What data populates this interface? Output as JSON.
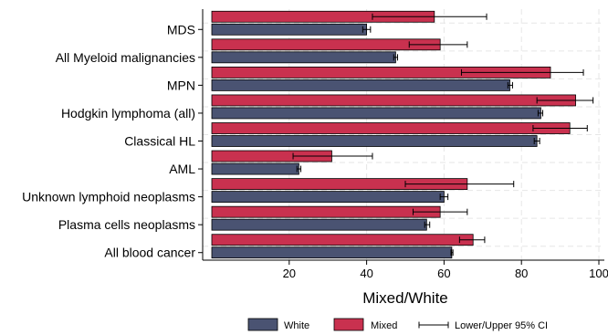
{
  "chart_data": {
    "type": "bar",
    "orientation": "horizontal",
    "title": "",
    "xlabel": "Mixed/White",
    "ylabel": "",
    "xlim": [
      0,
      100
    ],
    "xticks": [
      20,
      40,
      60,
      80,
      100
    ],
    "grid": true,
    "legend_position": "bottom",
    "categories": [
      "MDS",
      "All Myeloid malignancies",
      "MPN",
      "Hodgkin lymphoma (all)",
      "Classical HL",
      "AML",
      "Unknown lymphoid neoplasms",
      "Plasma cells neoplasms",
      "All blood cancer"
    ],
    "series": [
      {
        "name": "White",
        "color": "#4a5372",
        "values": [
          40.0,
          47.5,
          77.0,
          85.0,
          84.0,
          22.5,
          60.0,
          55.5,
          62.0
        ],
        "ci_lower": [
          39.0,
          47.0,
          76.5,
          84.3,
          83.3,
          22.0,
          59.0,
          55.0,
          61.8
        ],
        "ci_upper": [
          41.0,
          48.0,
          77.7,
          85.5,
          84.7,
          23.0,
          61.0,
          56.3,
          62.3
        ]
      },
      {
        "name": "Mixed",
        "color": "#c9314f",
        "values": [
          57.5,
          59.0,
          87.5,
          94.0,
          92.5,
          31.0,
          66.0,
          59.0,
          67.5
        ],
        "ci_lower": [
          41.5,
          51.0,
          64.5,
          84.0,
          83.0,
          21.0,
          50.0,
          52.0,
          64.0
        ],
        "ci_upper": [
          71.0,
          66.0,
          96.0,
          98.5,
          97.0,
          41.5,
          78.0,
          66.0,
          70.5
        ]
      }
    ],
    "legend": {
      "white_label": "White",
      "mixed_label": "Mixed",
      "ci_label": "Lower/Upper 95% CI"
    }
  },
  "colors": {
    "white_bar": "#4a5372",
    "mixed_bar": "#c9314f",
    "bar_outline": "#000000",
    "grid": "#e6e6e6"
  }
}
